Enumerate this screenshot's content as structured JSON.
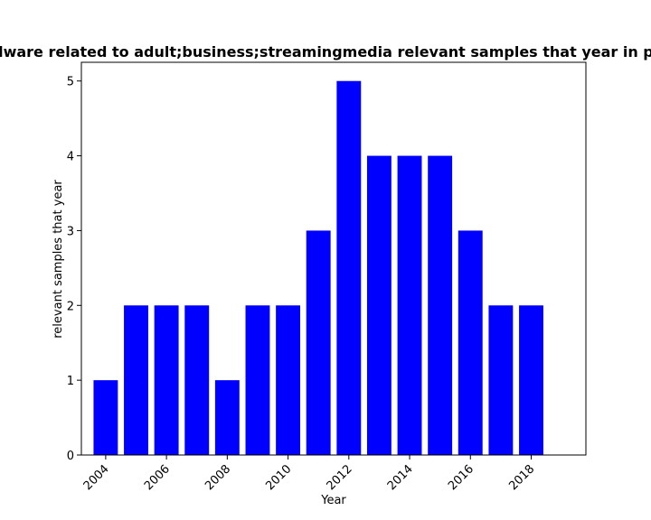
{
  "chart_data": {
    "type": "bar",
    "title": "Number of malware related to adult;business;streamingmedia relevant samples that year in private dataset",
    "xlabel": "Year",
    "ylabel": "relevant samples that year",
    "categories": [
      2004,
      2005,
      2006,
      2007,
      2008,
      2009,
      2010,
      2011,
      2012,
      2013,
      2014,
      2015,
      2016,
      2017,
      2018
    ],
    "values": [
      1,
      2,
      2,
      2,
      1,
      2,
      2,
      3,
      5,
      4,
      4,
      4,
      3,
      2,
      2
    ],
    "xticks": [
      2004,
      2006,
      2008,
      2010,
      2012,
      2014,
      2016,
      2018
    ],
    "yticks": [
      0,
      1,
      2,
      3,
      4,
      5
    ],
    "xlim": [
      2003.2,
      2019.8
    ],
    "ylim": [
      0,
      5.25
    ],
    "bar_color": "#0000ff",
    "grid": false,
    "legend": "none"
  }
}
